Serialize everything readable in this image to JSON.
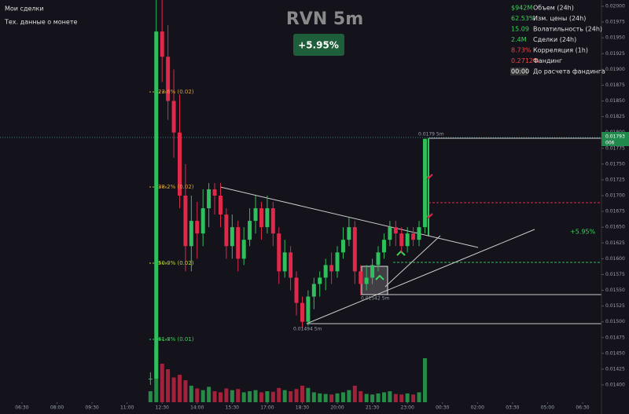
{
  "menu": [
    "Мои сделки",
    "Тех. данные о монете"
  ],
  "stats": [
    {
      "value": "$942M",
      "label": "Объем (24h)",
      "color": "#3ad45a"
    },
    {
      "value": "62.53%",
      "label": "Изм. цены (24h)",
      "color": "#3ad45a"
    },
    {
      "value": "15.09",
      "label": "Волатильность (24h)",
      "color": "#3ad45a"
    },
    {
      "value": "2.4M",
      "label": "Сделки (24h)",
      "color": "#3ad45a"
    },
    {
      "value": "8.73%",
      "label": "Корреляция (1h)",
      "color": "#e84a4a"
    },
    {
      "value": "0.2712%",
      "label": "Фандинг",
      "color": "#e84a4a"
    },
    {
      "value": "00:00",
      "label": "До расчета фандинга",
      "color": "#ffffff"
    }
  ],
  "chart_data": {
    "type": "candlestick",
    "title": "RVN 5m",
    "change": "+5.95%",
    "change_right": "+5.95%",
    "last_price": "0.01793",
    "last_sub": "006",
    "annotations": [
      "0.0179 5m",
      "0.01542 5m",
      "0.01494 5m"
    ],
    "fib_labels": [
      "23.6% (0.02)",
      "38.2% (0.02)",
      "50.0% (0.02)",
      "61.8% (0.01)"
    ],
    "up_color": "#2fbf5c",
    "down_color": "#e0294a",
    "x": [
      5.5,
      5.75,
      6,
      6.25,
      6.5,
      6.75,
      7,
      7.25,
      7.5,
      7.75,
      8,
      8.25,
      8.5,
      8.75,
      9,
      9.25,
      9.5,
      9.75,
      10,
      10.25,
      10.5,
      10.75,
      11,
      11.25,
      11.5,
      11.75,
      12,
      12.25,
      12.5,
      12.75,
      13,
      13.25,
      13.5,
      13.75,
      14,
      14.25,
      14.5,
      14.75,
      15,
      15.25,
      15.5,
      15.75,
      16,
      16.25,
      16.5,
      16.75,
      17,
      17.25
    ],
    "open": [
      0.0141,
      0.0141,
      0.0196,
      0.0192,
      0.0185,
      0.018,
      0.017,
      0.0162,
      0.0166,
      0.0164,
      0.0168,
      0.0171,
      0.017,
      0.0167,
      0.0162,
      0.0165,
      0.016,
      0.0163,
      0.0166,
      0.0168,
      0.0165,
      0.0168,
      0.0164,
      0.0158,
      0.0161,
      0.0157,
      0.0153,
      0.015,
      0.0154,
      0.0156,
      0.0157,
      0.0159,
      0.0158,
      0.0161,
      0.0163,
      0.0165,
      0.0158,
      0.0156,
      0.0157,
      0.0159,
      0.0161,
      0.0163,
      0.0165,
      0.0164,
      0.0162,
      0.0164,
      0.0163,
      0.0165
    ],
    "high": [
      0.0142,
      0.0203,
      0.0201,
      0.0197,
      0.019,
      0.0186,
      0.0175,
      0.017,
      0.0169,
      0.0171,
      0.0172,
      0.0172,
      0.0172,
      0.0168,
      0.0167,
      0.0166,
      0.0165,
      0.0168,
      0.017,
      0.0169,
      0.017,
      0.0169,
      0.0165,
      0.0163,
      0.0162,
      0.0158,
      0.0154,
      0.0155,
      0.0157,
      0.0158,
      0.016,
      0.0161,
      0.0162,
      0.0165,
      0.01665,
      0.0166,
      0.0159,
      0.0159,
      0.016,
      0.0162,
      0.0164,
      0.0166,
      0.0166,
      0.0165,
      0.0165,
      0.0165,
      0.0166,
      0.0179
    ],
    "low": [
      0.014,
      0.0141,
      0.0188,
      0.0182,
      0.0176,
      0.0168,
      0.0158,
      0.0158,
      0.016,
      0.0162,
      0.0165,
      0.0167,
      0.0165,
      0.016,
      0.016,
      0.0158,
      0.0159,
      0.0162,
      0.0164,
      0.0163,
      0.0164,
      0.0162,
      0.0156,
      0.0157,
      0.0155,
      0.0151,
      0.0149,
      0.01494,
      0.0152,
      0.0154,
      0.0155,
      0.0156,
      0.0157,
      0.016,
      0.0162,
      0.0156,
      0.01542,
      0.0155,
      0.0156,
      0.0158,
      0.016,
      0.0162,
      0.0162,
      0.0161,
      0.0161,
      0.0162,
      0.0162,
      0.0164
    ],
    "close": [
      0.0141,
      0.0196,
      0.0192,
      0.0185,
      0.018,
      0.017,
      0.0162,
      0.0166,
      0.0164,
      0.0168,
      0.0171,
      0.017,
      0.0167,
      0.0162,
      0.0165,
      0.016,
      0.0163,
      0.0166,
      0.0168,
      0.0165,
      0.0168,
      0.0164,
      0.0158,
      0.0161,
      0.0157,
      0.0153,
      0.015,
      0.0154,
      0.0156,
      0.0157,
      0.0159,
      0.0158,
      0.0161,
      0.0163,
      0.0165,
      0.0158,
      0.0156,
      0.0157,
      0.0159,
      0.0161,
      0.0163,
      0.0165,
      0.0164,
      0.0162,
      0.0164,
      0.0163,
      0.0165,
      0.0179
    ],
    "volumes": [
      20,
      100,
      70,
      60,
      45,
      50,
      40,
      30,
      25,
      22,
      28,
      20,
      18,
      25,
      22,
      24,
      18,
      20,
      22,
      18,
      20,
      19,
      26,
      22,
      20,
      24,
      30,
      26,
      18,
      16,
      15,
      14,
      16,
      18,
      22,
      30,
      20,
      15,
      14,
      16,
      18,
      20,
      15,
      14,
      16,
      14,
      18,
      80
    ],
    "xlim": [
      -0.94,
      24.64
    ],
    "xticks": [
      {
        "value": 0,
        "label": "06:30"
      },
      {
        "value": 1.5,
        "label": "08:00"
      },
      {
        "value": 3,
        "label": "09:30"
      },
      {
        "value": 4.5,
        "label": "11:00"
      },
      {
        "value": 6,
        "label": "12:30"
      },
      {
        "value": 7.5,
        "label": "14:00"
      },
      {
        "value": 9,
        "label": "15:30"
      },
      {
        "value": 10.5,
        "label": "17:00"
      },
      {
        "value": 12,
        "label": "18:30"
      },
      {
        "value": 13.5,
        "label": "20:00"
      },
      {
        "value": 15,
        "label": "21:30"
      },
      {
        "value": 16.5,
        "label": "23:00"
      },
      {
        "value": 18,
        "label": "00:30"
      },
      {
        "value": 19.5,
        "label": "02:00"
      },
      {
        "value": 21,
        "label": "03:30"
      },
      {
        "value": 22.5,
        "label": "05:00"
      },
      {
        "value": 24,
        "label": "06:30"
      }
    ],
    "ylim": [
      0.014,
      0.02
    ],
    "yticks": [
      {
        "value": 0.02,
        "label": "0.02000"
      },
      {
        "value": 0.01975,
        "label": "0.01975"
      },
      {
        "value": 0.0195,
        "label": "0.01950"
      },
      {
        "value": 0.01925,
        "label": "0.01925"
      },
      {
        "value": 0.019,
        "label": "0.01900"
      },
      {
        "value": 0.01875,
        "label": "0.01875"
      },
      {
        "value": 0.0185,
        "label": "0.01850"
      },
      {
        "value": 0.01825,
        "label": "0.01825"
      },
      {
        "value": 0.018,
        "label": "0.01800"
      },
      {
        "value": 0.01775,
        "label": "0.01775"
      },
      {
        "value": 0.0175,
        "label": "0.01750"
      },
      {
        "value": 0.01725,
        "label": "0.01725"
      },
      {
        "value": 0.017,
        "label": "0.01700"
      },
      {
        "value": 0.01675,
        "label": "0.01675"
      },
      {
        "value": 0.0165,
        "label": "0.01650"
      },
      {
        "value": 0.01625,
        "label": "0.01625"
      },
      {
        "value": 0.016,
        "label": "0.01600"
      },
      {
        "value": 0.01575,
        "label": "0.01575"
      },
      {
        "value": 0.0155,
        "label": "0.01550"
      },
      {
        "value": 0.01525,
        "label": "0.01525"
      },
      {
        "value": 0.015,
        "label": "0.01500"
      },
      {
        "value": 0.01475,
        "label": "0.01475"
      },
      {
        "value": 0.0145,
        "label": "0.01450"
      },
      {
        "value": 0.01425,
        "label": "0.01425"
      },
      {
        "value": 0.014,
        "label": "0.01400"
      }
    ]
  }
}
